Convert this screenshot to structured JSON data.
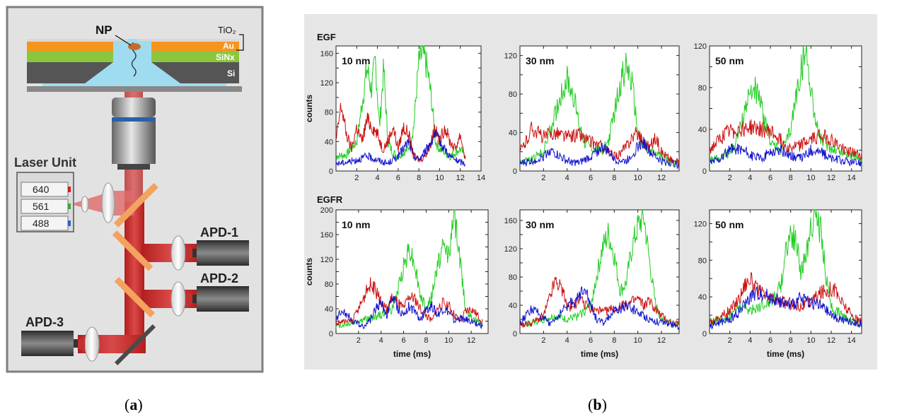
{
  "panel_a": {
    "caption_open": "(",
    "caption_letter": "a",
    "caption_close": ")",
    "labels": {
      "np": "NP",
      "tio2": "TiO₂",
      "au": "Au",
      "sinx": "SiNx",
      "si": "Si",
      "laser_unit": "Laser Unit",
      "laser_640": "640",
      "laser_561": "561",
      "laser_488": "488",
      "apd1": "APD-1",
      "apd2": "APD-2",
      "apd3": "APD-3"
    }
  },
  "panel_b": {
    "caption_open": "(",
    "caption_letter": "b",
    "caption_close": ")",
    "row_labels": [
      "EGF",
      "EGFR"
    ],
    "ylabel": "counts",
    "xlabel": "time (ms)"
  },
  "colors": {
    "green": "#22cc22",
    "red": "#cc1111",
    "blue": "#1111cc",
    "panel_bg": "#e6e6e6"
  },
  "chart_data": [
    {
      "type": "line",
      "row": "EGF",
      "title": "10 nm",
      "xlim": [
        0,
        14
      ],
      "ylim": [
        0,
        170
      ],
      "xticks": [
        2,
        4,
        6,
        8,
        10,
        12,
        14
      ],
      "yticks": [
        0,
        20,
        40,
        60,
        80,
        100,
        120,
        140,
        160
      ],
      "ytick_labels": [
        0,
        40,
        80,
        120,
        160
      ],
      "series": [
        {
          "name": "green",
          "x": [
            0,
            1,
            2,
            2.5,
            3,
            3.4,
            3.8,
            4.2,
            4.6,
            5,
            5.5,
            6,
            6.5,
            7,
            7.5,
            8,
            8.4,
            8.8,
            9.2,
            9.6,
            10,
            10.5,
            11,
            11.5,
            12,
            12.5
          ],
          "values": [
            20,
            22,
            40,
            90,
            140,
            110,
            150,
            60,
            140,
            40,
            25,
            20,
            25,
            30,
            60,
            150,
            160,
            140,
            100,
            40,
            30,
            25,
            20,
            25,
            30,
            20
          ]
        },
        {
          "name": "red",
          "x": [
            0,
            0.5,
            1,
            1.5,
            2,
            2.5,
            3,
            3.5,
            4,
            4.5,
            5,
            5.5,
            6,
            6.5,
            7,
            7.5,
            8,
            8.5,
            9,
            9.5,
            10,
            10.5,
            11,
            11.5,
            12,
            12.5
          ],
          "values": [
            40,
            90,
            50,
            30,
            60,
            40,
            70,
            60,
            50,
            30,
            40,
            60,
            30,
            60,
            50,
            20,
            15,
            20,
            30,
            60,
            40,
            60,
            40,
            30,
            50,
            15
          ]
        },
        {
          "name": "blue",
          "x": [
            0,
            1,
            2,
            3,
            4,
            5,
            6,
            6.5,
            7,
            7.5,
            8,
            8.5,
            9,
            9.5,
            10,
            10.5,
            11,
            11.5,
            12,
            12.5
          ],
          "values": [
            10,
            12,
            15,
            20,
            15,
            10,
            20,
            30,
            40,
            20,
            15,
            25,
            35,
            50,
            40,
            30,
            20,
            15,
            12,
            10
          ]
        }
      ]
    },
    {
      "type": "line",
      "row": "EGF",
      "title": "30 nm",
      "xlim": [
        0,
        13.5
      ],
      "ylim": [
        0,
        130
      ],
      "xticks": [
        2,
        4,
        6,
        8,
        10,
        12
      ],
      "yticks": [
        0,
        20,
        40,
        60,
        80,
        100,
        120
      ],
      "ytick_labels": [
        0,
        40,
        80,
        120
      ],
      "series": [
        {
          "name": "green",
          "x": [
            0,
            1,
            2,
            2.5,
            3,
            3.5,
            4,
            4.5,
            5,
            5.5,
            6,
            6.5,
            7,
            7.5,
            8,
            8.5,
            9,
            9.5,
            10,
            10.5,
            11,
            11.5,
            12,
            12.5,
            13,
            13.5
          ],
          "values": [
            10,
            12,
            20,
            40,
            60,
            80,
            95,
            80,
            50,
            30,
            25,
            20,
            22,
            30,
            60,
            90,
            110,
            90,
            40,
            25,
            20,
            18,
            15,
            12,
            10,
            8
          ]
        },
        {
          "name": "red",
          "x": [
            0,
            0.5,
            1,
            1.5,
            2,
            3,
            4,
            5,
            6,
            7,
            7.5,
            8,
            8.5,
            9,
            9.5,
            10,
            10.5,
            11,
            11.5,
            12,
            12.5,
            13,
            13.5
          ],
          "values": [
            20,
            30,
            45,
            40,
            35,
            40,
            35,
            38,
            30,
            25,
            20,
            15,
            18,
            25,
            35,
            40,
            30,
            25,
            35,
            20,
            15,
            10,
            8
          ]
        },
        {
          "name": "blue",
          "x": [
            0,
            1,
            2,
            2.5,
            3,
            4,
            5,
            6,
            6.5,
            7,
            7.5,
            8,
            9,
            10,
            10.5,
            11,
            12,
            13,
            13.5
          ],
          "values": [
            8,
            10,
            15,
            22,
            18,
            10,
            8,
            15,
            20,
            25,
            20,
            12,
            10,
            25,
            30,
            20,
            10,
            8,
            6
          ]
        }
      ]
    },
    {
      "type": "line",
      "row": "EGF",
      "title": "50 nm",
      "xlim": [
        0,
        15
      ],
      "ylim": [
        0,
        120
      ],
      "xticks": [
        2,
        4,
        6,
        8,
        10,
        12,
        14
      ],
      "yticks": [
        0,
        20,
        40,
        60,
        80,
        100,
        120
      ],
      "ytick_labels": [
        0,
        40,
        80,
        120
      ],
      "series": [
        {
          "name": "green",
          "x": [
            0,
            1,
            2,
            2.5,
            3,
            3.5,
            4,
            4.5,
            5,
            5.5,
            6,
            6.5,
            7,
            7.5,
            8,
            8.5,
            9,
            9.5,
            10,
            10.5,
            11,
            11.5,
            12,
            13,
            14,
            15
          ],
          "values": [
            10,
            12,
            18,
            25,
            40,
            60,
            75,
            80,
            65,
            45,
            30,
            22,
            20,
            25,
            40,
            70,
            95,
            115,
            80,
            45,
            30,
            25,
            22,
            18,
            15,
            12
          ]
        },
        {
          "name": "red",
          "x": [
            0,
            1,
            1.5,
            2,
            3,
            4,
            5,
            6,
            7,
            7.5,
            8,
            9,
            10,
            11,
            12,
            13,
            14,
            15
          ],
          "values": [
            20,
            30,
            35,
            38,
            40,
            42,
            40,
            38,
            30,
            25,
            22,
            25,
            30,
            35,
            30,
            22,
            18,
            15
          ]
        },
        {
          "name": "blue",
          "x": [
            0,
            1,
            2,
            3,
            4,
            5,
            6,
            7,
            8,
            9,
            10,
            11,
            12,
            13,
            14,
            15
          ],
          "values": [
            8,
            12,
            20,
            22,
            15,
            12,
            18,
            20,
            15,
            12,
            20,
            18,
            12,
            10,
            8,
            8
          ]
        }
      ]
    },
    {
      "type": "line",
      "row": "EGFR",
      "title": "10 nm",
      "xlim": [
        0,
        13.5
      ],
      "ylim": [
        0,
        200
      ],
      "xticks": [
        2,
        4,
        6,
        8,
        10,
        12
      ],
      "yticks": [
        0,
        20,
        40,
        60,
        80,
        100,
        120,
        140,
        160,
        180,
        200
      ],
      "ytick_labels": [
        0,
        40,
        80,
        120,
        160,
        200
      ],
      "series": [
        {
          "name": "green",
          "x": [
            0,
            1,
            2,
            3,
            4,
            5,
            5.5,
            6,
            6.5,
            7,
            7.5,
            8,
            8.5,
            9,
            9.5,
            10,
            10.5,
            11,
            11.5,
            12,
            13
          ],
          "values": [
            12,
            15,
            20,
            25,
            30,
            40,
            70,
            110,
            140,
            110,
            60,
            40,
            60,
            110,
            140,
            130,
            190,
            120,
            40,
            25,
            15
          ]
        },
        {
          "name": "red",
          "x": [
            0,
            0.5,
            1,
            1.5,
            2,
            2.5,
            3,
            3.5,
            4,
            4.5,
            5,
            5.5,
            6,
            6.5,
            7,
            7.5,
            8,
            8.5,
            9,
            9.5,
            10,
            10.5,
            11,
            11.5,
            12,
            12.5,
            13
          ],
          "values": [
            15,
            20,
            18,
            22,
            40,
            60,
            80,
            70,
            50,
            40,
            60,
            50,
            40,
            60,
            55,
            40,
            30,
            20,
            40,
            50,
            45,
            30,
            20,
            35,
            40,
            30,
            20
          ]
        },
        {
          "name": "blue",
          "x": [
            0,
            0.5,
            1,
            1.5,
            2,
            2.5,
            3,
            3.5,
            4,
            4.5,
            5,
            5.5,
            6,
            6.5,
            7,
            7.5,
            8,
            8.5,
            9,
            9.5,
            10,
            10.5,
            11,
            12,
            13
          ],
          "values": [
            20,
            40,
            30,
            20,
            15,
            12,
            20,
            40,
            50,
            30,
            60,
            40,
            30,
            45,
            35,
            20,
            40,
            45,
            30,
            40,
            35,
            20,
            25,
            20,
            12
          ]
        }
      ]
    },
    {
      "type": "line",
      "row": "EGFR",
      "title": "30 nm",
      "xlim": [
        0,
        13.5
      ],
      "ylim": [
        0,
        175
      ],
      "xticks": [
        2,
        4,
        6,
        8,
        10,
        12
      ],
      "yticks": [
        0,
        20,
        40,
        60,
        80,
        100,
        120,
        140,
        160
      ],
      "ytick_labels": [
        0,
        40,
        80,
        120,
        160
      ],
      "series": [
        {
          "name": "green",
          "x": [
            0,
            1,
            2,
            3,
            4,
            5,
            6,
            6.5,
            7,
            7.5,
            8,
            8.5,
            9,
            9.5,
            10,
            10.5,
            11,
            11.5,
            12,
            13,
            13.5
          ],
          "values": [
            12,
            15,
            20,
            25,
            20,
            25,
            40,
            80,
            120,
            140,
            110,
            60,
            70,
            120,
            150,
            165,
            100,
            40,
            20,
            15,
            12
          ]
        },
        {
          "name": "red",
          "x": [
            0,
            1,
            2,
            2.5,
            3,
            3.5,
            4,
            4.5,
            5,
            5.5,
            6,
            7,
            8,
            9,
            10,
            10.5,
            11,
            11.5,
            12,
            13,
            13.5
          ],
          "values": [
            12,
            15,
            25,
            50,
            75,
            65,
            40,
            35,
            50,
            40,
            35,
            30,
            35,
            40,
            50,
            40,
            45,
            35,
            25,
            15,
            12
          ]
        },
        {
          "name": "blue",
          "x": [
            0,
            0.5,
            1,
            1.5,
            2,
            2.5,
            3,
            4,
            5,
            5.5,
            6,
            6.5,
            7,
            8,
            9,
            10,
            11,
            12,
            13,
            13.5
          ],
          "values": [
            15,
            25,
            35,
            30,
            20,
            15,
            20,
            40,
            50,
            70,
            40,
            20,
            15,
            30,
            40,
            30,
            20,
            15,
            12,
            10
          ]
        }
      ]
    },
    {
      "type": "line",
      "row": "EGFR",
      "title": "50 nm",
      "xlim": [
        0,
        15
      ],
      "ylim": [
        0,
        135
      ],
      "xticks": [
        2,
        4,
        6,
        8,
        10,
        12,
        14
      ],
      "yticks": [
        0,
        20,
        40,
        60,
        80,
        100,
        120
      ],
      "ytick_labels": [
        0,
        40,
        80,
        120
      ],
      "series": [
        {
          "name": "green",
          "x": [
            0,
            1,
            2,
            3,
            4,
            5,
            6,
            7,
            7.5,
            8,
            8.5,
            9,
            9.5,
            10,
            10.5,
            11,
            11.5,
            12,
            13,
            14,
            15
          ],
          "values": [
            12,
            15,
            20,
            30,
            25,
            30,
            35,
            50,
            90,
            110,
            100,
            70,
            80,
            120,
            130,
            110,
            60,
            30,
            20,
            15,
            12
          ]
        },
        {
          "name": "red",
          "x": [
            0,
            1,
            2,
            3,
            3.5,
            4,
            4.5,
            5,
            5.5,
            6,
            7,
            8,
            9,
            10,
            11,
            12,
            12.5,
            13,
            14,
            15
          ],
          "values": [
            12,
            18,
            25,
            40,
            55,
            60,
            50,
            45,
            40,
            38,
            35,
            32,
            30,
            35,
            45,
            50,
            45,
            35,
            20,
            12
          ]
        },
        {
          "name": "blue",
          "x": [
            0,
            1,
            2,
            3,
            4,
            5,
            6,
            7,
            8,
            9,
            10,
            11,
            12,
            13,
            14,
            15
          ],
          "values": [
            8,
            12,
            15,
            25,
            40,
            45,
            40,
            35,
            30,
            38,
            35,
            30,
            20,
            15,
            12,
            10
          ]
        }
      ]
    }
  ]
}
